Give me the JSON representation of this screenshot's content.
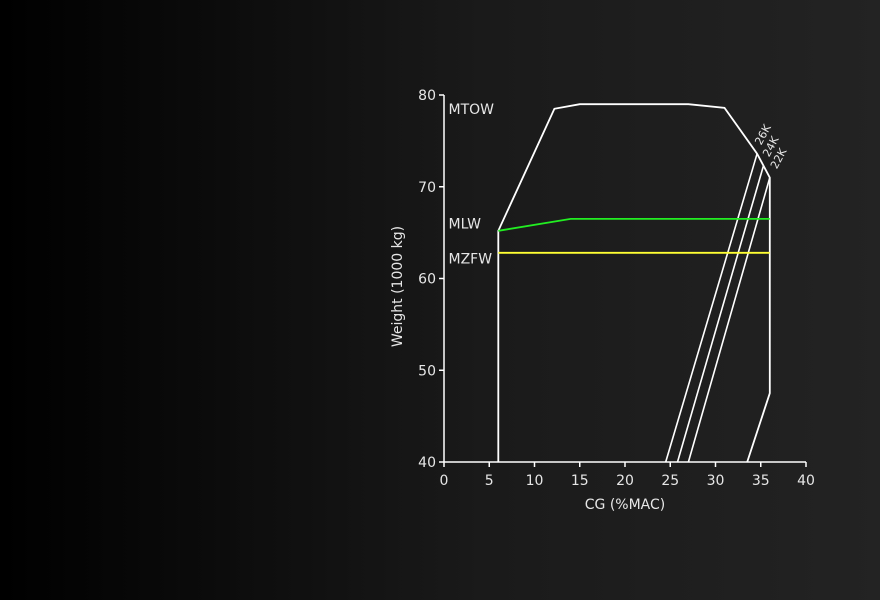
{
  "chart_data": {
    "type": "line",
    "xlabel": "CG (%MAC)",
    "ylabel": "Weight (1000 kg)",
    "xlim": [
      0,
      40
    ],
    "ylim": [
      40,
      80
    ],
    "xticks": [
      0,
      5,
      10,
      15,
      20,
      25,
      30,
      35,
      40
    ],
    "yticks": [
      40,
      50,
      60,
      70,
      80
    ],
    "grid": false,
    "colors": {
      "axis": "#ffffff",
      "envelope": "#ffffff",
      "mlw": "#22ee22",
      "mzfw": "#ffff33",
      "trim": "#ffffff"
    },
    "envelope": {
      "name": "MTOW",
      "points": [
        [
          6,
          40
        ],
        [
          6,
          65.2
        ],
        [
          12.2,
          78.5
        ],
        [
          15,
          79
        ],
        [
          27,
          79
        ],
        [
          31,
          78.6
        ],
        [
          34.6,
          73.6
        ],
        [
          36,
          71
        ],
        [
          36,
          47.5
        ],
        [
          33.5,
          40
        ]
      ]
    },
    "limit_lines": [
      {
        "name": "MLW",
        "color": "mlw",
        "points": [
          [
            6,
            65.2
          ],
          [
            14,
            66.5
          ],
          [
            36,
            66.5
          ]
        ]
      },
      {
        "name": "MZFW",
        "color": "mzfw",
        "points": [
          [
            6,
            62.8
          ],
          [
            36,
            62.8
          ]
        ]
      }
    ],
    "limit_labels": [
      {
        "text": "MTOW",
        "x": 0.5,
        "y": 78.5
      },
      {
        "text": "MLW",
        "x": 0.5,
        "y": 66
      },
      {
        "text": "MZFW",
        "x": 0.5,
        "y": 62.2
      }
    ],
    "trim_lines": [
      {
        "name": "26K",
        "points": [
          [
            24.5,
            40
          ],
          [
            34.6,
            73.6
          ]
        ]
      },
      {
        "name": "24K",
        "points": [
          [
            25.8,
            40
          ],
          [
            35.3,
            72.3
          ]
        ]
      },
      {
        "name": "22K",
        "points": [
          [
            27,
            40
          ],
          [
            36,
            71
          ]
        ]
      }
    ]
  }
}
